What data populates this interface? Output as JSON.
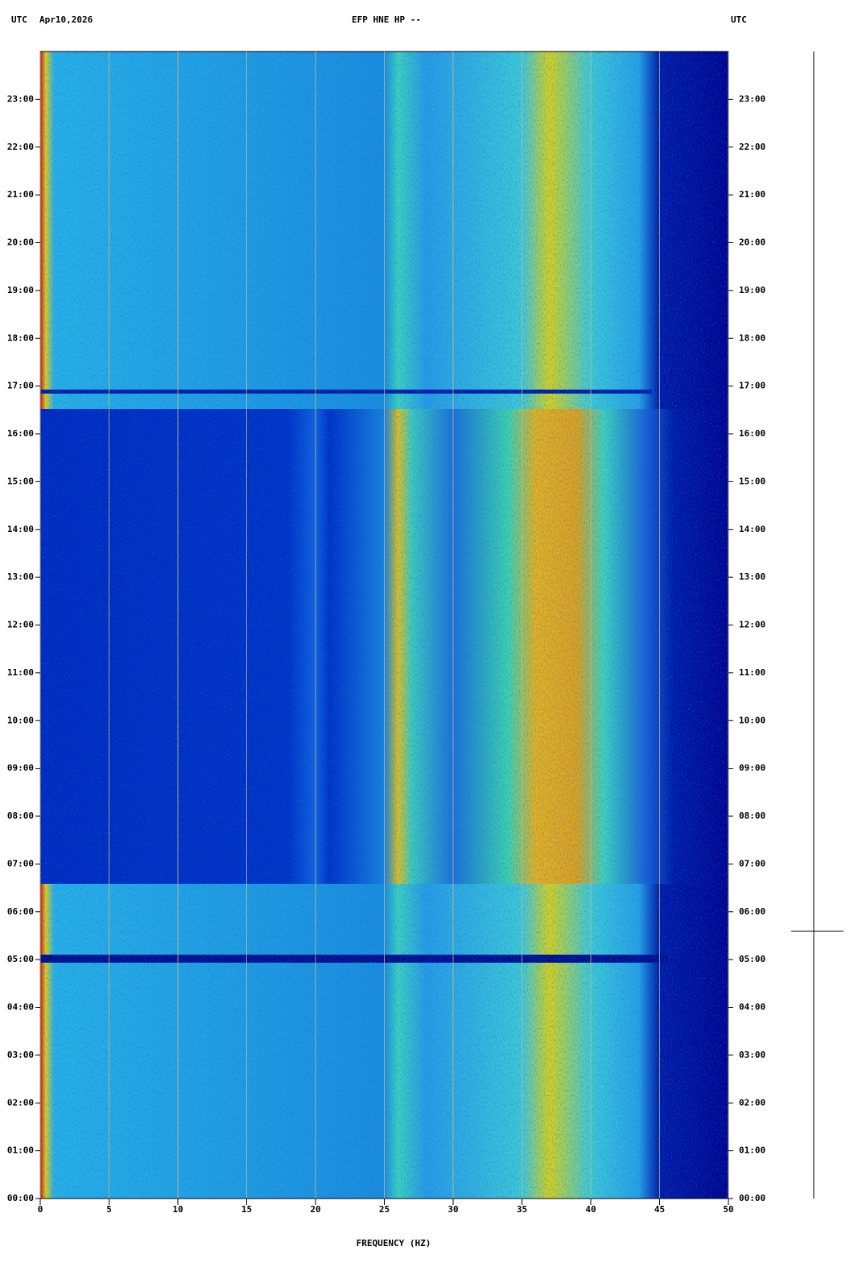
{
  "chart_data": {
    "type": "spectrogram",
    "title": "EFP HNE HP --",
    "left_header": "UTC",
    "date": "Apr10,2026",
    "right_header": "UTC",
    "xlabel": "FREQUENCY (HZ)",
    "xlim": [
      0,
      50
    ],
    "xticks": [
      0,
      5,
      10,
      15,
      20,
      25,
      30,
      35,
      40,
      45,
      50
    ],
    "ylim": [
      0,
      24
    ],
    "yticks": [
      {
        "value": 0,
        "label": "00:00"
      },
      {
        "value": 1,
        "label": "01:00"
      },
      {
        "value": 2,
        "label": "02:00"
      },
      {
        "value": 3,
        "label": "03:00"
      },
      {
        "value": 4,
        "label": "04:00"
      },
      {
        "value": 5,
        "label": "05:00"
      },
      {
        "value": 6,
        "label": "06:00"
      },
      {
        "value": 7,
        "label": "07:00"
      },
      {
        "value": 8,
        "label": "08:00"
      },
      {
        "value": 9,
        "label": "09:00"
      },
      {
        "value": 10,
        "label": "10:00"
      },
      {
        "value": 11,
        "label": "11:00"
      },
      {
        "value": 12,
        "label": "12:00"
      },
      {
        "value": 13,
        "label": "13:00"
      },
      {
        "value": 14,
        "label": "14:00"
      },
      {
        "value": 15,
        "label": "15:00"
      },
      {
        "value": 16,
        "label": "16:00"
      },
      {
        "value": 17,
        "label": "17:00"
      },
      {
        "value": 18,
        "label": "18:00"
      },
      {
        "value": 19,
        "label": "19:00"
      },
      {
        "value": 20,
        "label": "20:00"
      },
      {
        "value": 21,
        "label": "21:00"
      },
      {
        "value": 22,
        "label": "22:00"
      },
      {
        "value": 23,
        "label": "23:00"
      }
    ],
    "grid": true
  }
}
